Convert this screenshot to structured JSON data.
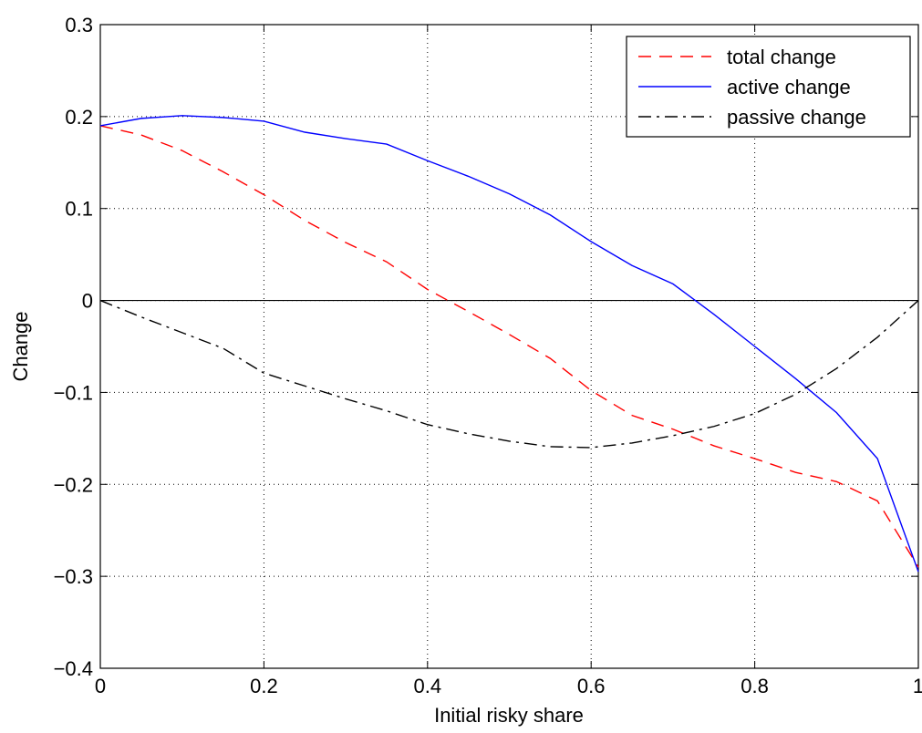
{
  "chart_data": {
    "type": "line",
    "xlabel": "Initial risky share",
    "ylabel": "Change",
    "x": [
      0,
      0.05,
      0.1,
      0.15,
      0.2,
      0.25,
      0.3,
      0.35,
      0.4,
      0.45,
      0.5,
      0.55,
      0.6,
      0.65,
      0.7,
      0.75,
      0.8,
      0.85,
      0.9,
      0.95,
      1
    ],
    "series": [
      {
        "name": "total change",
        "color": "#ff0000",
        "dash": "dashed",
        "values": [
          0.19,
          0.18,
          0.163,
          0.14,
          0.115,
          0.087,
          0.063,
          0.042,
          0.012,
          -0.012,
          -0.037,
          -0.063,
          -0.098,
          -0.125,
          -0.14,
          -0.158,
          -0.172,
          -0.187,
          -0.197,
          -0.218,
          -0.29
        ]
      },
      {
        "name": "active change",
        "color": "#0000ff",
        "dash": "solid",
        "values": [
          0.19,
          0.198,
          0.201,
          0.199,
          0.195,
          0.183,
          0.176,
          0.17,
          0.152,
          0.135,
          0.116,
          0.093,
          0.064,
          0.038,
          0.018,
          -0.015,
          -0.05,
          -0.085,
          -0.122,
          -0.172,
          -0.295
        ]
      },
      {
        "name": "passive change",
        "color": "#000000",
        "dash": "dashdot",
        "values": [
          0,
          -0.018,
          -0.035,
          -0.052,
          -0.079,
          -0.093,
          -0.107,
          -0.12,
          -0.135,
          -0.145,
          -0.153,
          -0.159,
          -0.16,
          -0.155,
          -0.147,
          -0.137,
          -0.123,
          -0.102,
          -0.074,
          -0.04,
          0
        ]
      }
    ],
    "xlim": [
      0,
      1
    ],
    "xticks": [
      0,
      0.2,
      0.4,
      0.6,
      0.8,
      1
    ],
    "ylim": [
      -0.4,
      0.3
    ],
    "yticks": [
      {
        "value": -0.4,
        "label": "−0.4"
      },
      {
        "value": -0.3,
        "label": "−0.3"
      },
      {
        "value": -0.2,
        "label": "−0.2"
      },
      {
        "value": -0.1,
        "label": "−0.1"
      },
      0,
      0.1,
      0.2,
      0.3
    ],
    "grid": true,
    "legend": "upper right"
  }
}
